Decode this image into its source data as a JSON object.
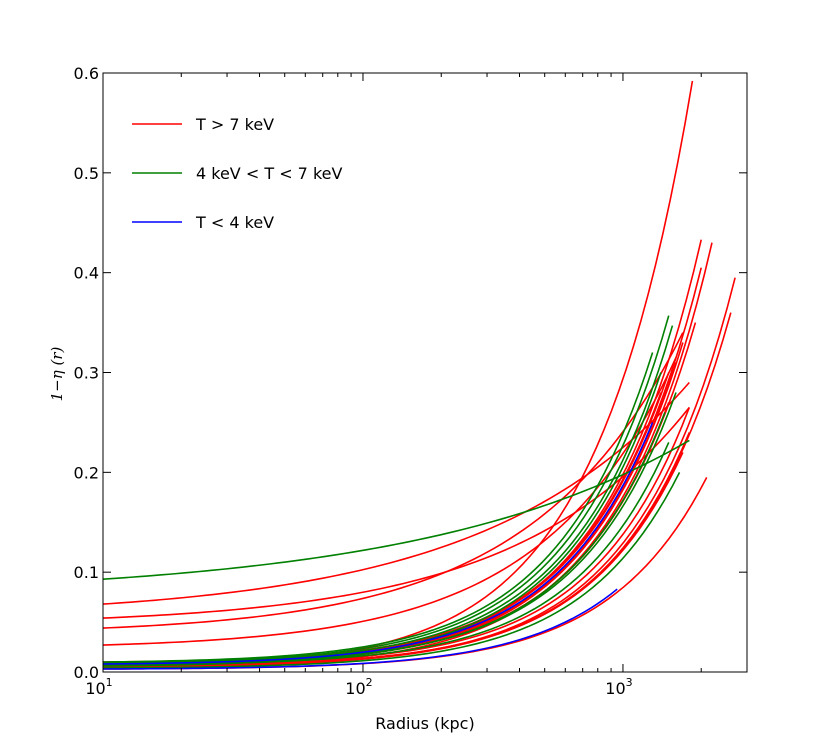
{
  "chart_data": {
    "type": "line",
    "title": "",
    "xlabel": "Radius (kpc)",
    "ylabel": "1−η (r)",
    "xscale": "log",
    "xlim": [
      10,
      3000
    ],
    "ylim": [
      0,
      0.6
    ],
    "x_ticks": [
      {
        "value": 10,
        "base": "10",
        "exp": "1"
      },
      {
        "value": 100,
        "base": "10",
        "exp": "2"
      },
      {
        "value": 1000,
        "base": "10",
        "exp": "3"
      }
    ],
    "y_ticks": [
      "0.0",
      "0.1",
      "0.2",
      "0.3",
      "0.4",
      "0.5",
      "0.6"
    ],
    "legend_position": "top-left",
    "legend": [
      {
        "label": "T > 7 keV",
        "color": "#ff0000"
      },
      {
        "label": "4 keV < T < 7 keV",
        "color": "#008000"
      },
      {
        "label": "T < 4 keV",
        "color": "#0000ff"
      }
    ],
    "colors": {
      "hot": "#ff0000",
      "warm": "#008000",
      "cool": "#0000ff"
    },
    "series": [
      {
        "group": "hot",
        "x": [
          10,
          1850
        ],
        "y": [
          0.005,
          0.592
        ]
      },
      {
        "group": "hot",
        "x": [
          10,
          2200
        ],
        "y": [
          0.004,
          0.43
        ]
      },
      {
        "group": "hot",
        "x": [
          10,
          2000
        ],
        "y": [
          0.006,
          0.433
        ]
      },
      {
        "group": "hot",
        "x": [
          10,
          2700
        ],
        "y": [
          0.005,
          0.395
        ]
      },
      {
        "group": "hot",
        "x": [
          10,
          2600
        ],
        "y": [
          0.006,
          0.36
        ]
      },
      {
        "group": "hot",
        "x": [
          10,
          2000
        ],
        "y": [
          0.007,
          0.405
        ]
      },
      {
        "group": "hot",
        "x": [
          10,
          1900
        ],
        "y": [
          0.008,
          0.35
        ]
      },
      {
        "group": "hot",
        "x": [
          10,
          1800
        ],
        "y": [
          0.007,
          0.265
        ]
      },
      {
        "group": "hot",
        "x": [
          10,
          1700
        ],
        "y": [
          0.006,
          0.22
        ]
      },
      {
        "group": "hot",
        "x": [
          10,
          2100
        ],
        "y": [
          0.003,
          0.195
        ]
      },
      {
        "group": "hot",
        "x": [
          10,
          1500
        ],
        "y": [
          0.009,
          0.3
        ]
      },
      {
        "group": "hot",
        "x": [
          10,
          1600
        ],
        "y": [
          0.006,
          0.31
        ]
      },
      {
        "group": "hot",
        "x": [
          10,
          1700
        ],
        "y": [
          0.008,
          0.33
        ]
      },
      {
        "group": "hot",
        "x": [
          10,
          1400
        ],
        "y": [
          0.01,
          0.28
        ]
      },
      {
        "group": "hot",
        "x": [
          10,
          1800
        ],
        "y": [
          0.005,
          0.24
        ]
      },
      {
        "group": "hot",
        "x": [
          10,
          1500
        ],
        "y": [
          0.007,
          0.27
        ]
      },
      {
        "group": "hot",
        "x": [
          10,
          1800
        ],
        "y": [
          0.068,
          0.29
        ]
      },
      {
        "group": "hot",
        "x": [
          10,
          1700
        ],
        "y": [
          0.044,
          0.34
        ]
      },
      {
        "group": "hot",
        "x": [
          10,
          1600
        ],
        "y": [
          0.027,
          0.315
        ]
      },
      {
        "group": "hot",
        "x": [
          10,
          1800
        ],
        "y": [
          0.054,
          0.265
        ]
      },
      {
        "group": "warm",
        "x": [
          10,
          1800
        ],
        "y": [
          0.093,
          0.232
        ]
      },
      {
        "group": "warm",
        "x": [
          10,
          1500
        ],
        "y": [
          0.009,
          0.357
        ]
      },
      {
        "group": "warm",
        "x": [
          10,
          1550
        ],
        "y": [
          0.008,
          0.347
        ]
      },
      {
        "group": "warm",
        "x": [
          10,
          1300
        ],
        "y": [
          0.01,
          0.32
        ]
      },
      {
        "group": "warm",
        "x": [
          10,
          1400
        ],
        "y": [
          0.006,
          0.3
        ]
      },
      {
        "group": "warm",
        "x": [
          10,
          1600
        ],
        "y": [
          0.008,
          0.28
        ]
      },
      {
        "group": "warm",
        "x": [
          10,
          1450
        ],
        "y": [
          0.007,
          0.26
        ]
      },
      {
        "group": "warm",
        "x": [
          10,
          1650
        ],
        "y": [
          0.004,
          0.2
        ]
      },
      {
        "group": "warm",
        "x": [
          10,
          1500
        ],
        "y": [
          0.007,
          0.23
        ]
      },
      {
        "group": "cool",
        "x": [
          10,
          950
        ],
        "y": [
          0.003,
          0.083
        ]
      },
      {
        "group": "cool",
        "x": [
          10,
          1300
        ],
        "y": [
          0.008,
          0.25
        ]
      }
    ]
  }
}
